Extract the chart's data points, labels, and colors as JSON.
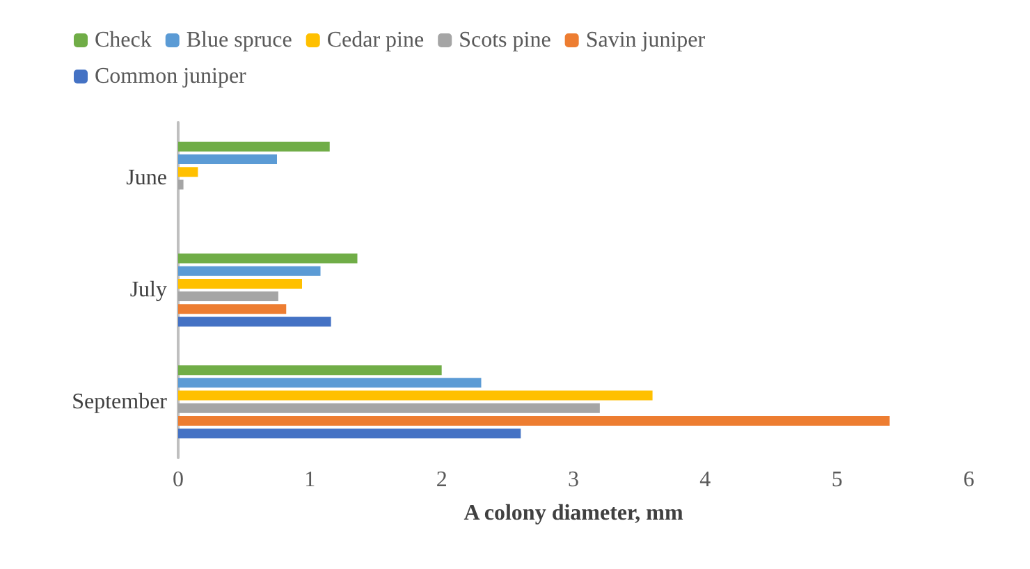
{
  "chart_data": {
    "type": "bar",
    "orientation": "horizontal",
    "xlabel": "A colony diameter, mm",
    "categories": [
      "June",
      "July",
      "September"
    ],
    "series": [
      {
        "name": "Check",
        "color": "#70ad47",
        "values": [
          1.15,
          1.36,
          2.0
        ]
      },
      {
        "name": "Blue spruce",
        "color": "#5b9bd5",
        "values": [
          0.75,
          1.08,
          2.3
        ]
      },
      {
        "name": "Cedar pine",
        "color": "#ffc000",
        "values": [
          0.15,
          0.94,
          3.6
        ]
      },
      {
        "name": "Scots pine",
        "color": "#a5a5a5",
        "values": [
          0.04,
          0.76,
          3.2
        ]
      },
      {
        "name": "Savin juniper",
        "color": "#ed7d31",
        "values": [
          0,
          0.82,
          5.4
        ]
      },
      {
        "name": "Common juniper",
        "color": "#4472c4",
        "values": [
          0,
          1.16,
          2.6
        ]
      }
    ],
    "xlim": [
      0,
      6
    ],
    "xticks": [
      0,
      1,
      2,
      3,
      4,
      5,
      6
    ],
    "grid": false,
    "legend": "top"
  }
}
